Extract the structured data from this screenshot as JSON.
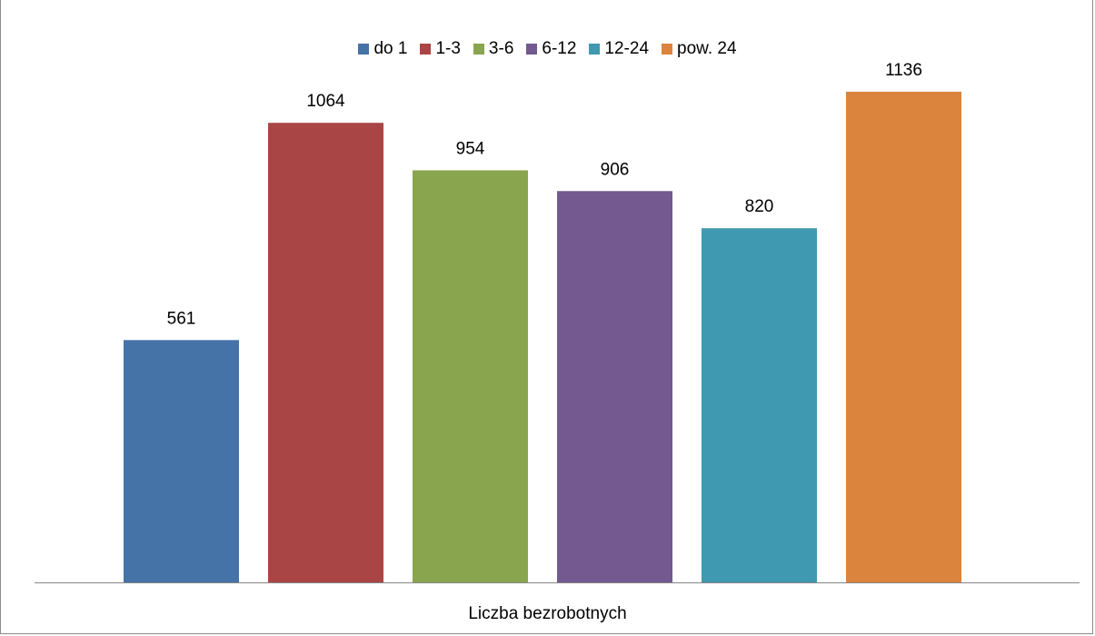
{
  "chart_data": {
    "type": "bar",
    "title": "",
    "categories": [
      "Liczba bezrobotnych"
    ],
    "series": [
      {
        "name": "do 1",
        "values": [
          561
        ],
        "color": "#4573a8"
      },
      {
        "name": "1-3",
        "values": [
          1064
        ],
        "color": "#a94645"
      },
      {
        "name": "3-6",
        "values": [
          954
        ],
        "color": "#89a54e"
      },
      {
        "name": "6-12",
        "values": [
          906
        ],
        "color": "#73598f"
      },
      {
        "name": "12-24",
        "values": [
          820
        ],
        "color": "#3f99b0"
      },
      {
        "name": "pow. 24",
        "values": [
          1136
        ],
        "color": "#db843d"
      }
    ],
    "xlabel": "Liczba bezrobotnych",
    "ylabel": "",
    "ylim": [
      0,
      1300
    ],
    "grid": false,
    "legend": "top",
    "data_labels": true
  }
}
